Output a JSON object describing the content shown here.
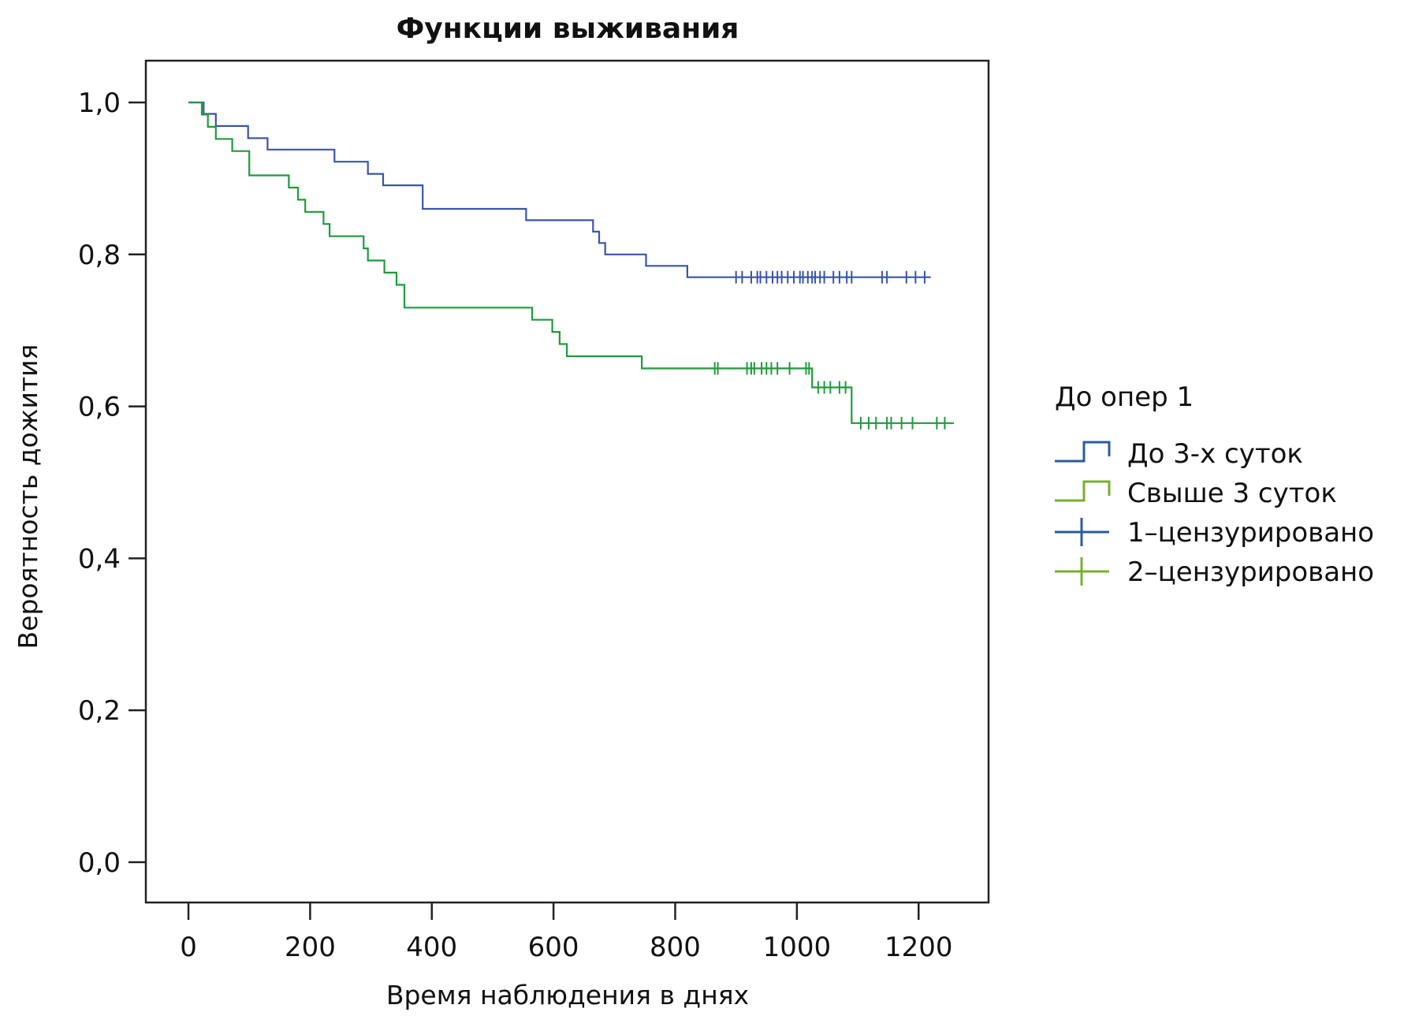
{
  "chart_data": {
    "type": "line",
    "subtype": "kaplan-meier step",
    "title": "Функции выживания",
    "xlabel": "Время наблюдения в днях",
    "ylabel": "Вероятность дожития",
    "xlim": [
      -70,
      1315
    ],
    "ylim": [
      -0.053,
      1.055
    ],
    "x_ticks": [
      0,
      200,
      400,
      600,
      800,
      1000,
      1200
    ],
    "x_tick_labels": [
      "0",
      "200",
      "400",
      "600",
      "800",
      "1000",
      "1200"
    ],
    "y_ticks": [
      0.0,
      0.2,
      0.4,
      0.6,
      0.8,
      1.0
    ],
    "y_tick_labels": [
      "0,0",
      "0,2",
      "0,4",
      "0,6",
      "0,8",
      "1,0"
    ],
    "grid": false,
    "legend": {
      "position": "right",
      "title": "До опер 1",
      "entries": [
        {
          "label": "До 3-х суток",
          "kind": "step",
          "color": "#2b5c9e"
        },
        {
          "label": "Свыше 3 суток",
          "kind": "step",
          "color": "#78b02e"
        },
        {
          "label": "1–цензурировано",
          "kind": "censor",
          "color": "#2b5c9e"
        },
        {
          "label": "2–цензурировано",
          "kind": "censor",
          "color": "#78b02e"
        }
      ]
    },
    "series": [
      {
        "name": "До 3-х суток",
        "color": "#3a55a8",
        "points": [
          [
            0,
            1.0
          ],
          [
            25,
            1.0
          ],
          [
            25,
            0.985
          ],
          [
            45,
            0.985
          ],
          [
            45,
            0.969
          ],
          [
            98,
            0.969
          ],
          [
            98,
            0.953
          ],
          [
            130,
            0.953
          ],
          [
            130,
            0.938
          ],
          [
            240,
            0.938
          ],
          [
            240,
            0.922
          ],
          [
            295,
            0.922
          ],
          [
            295,
            0.906
          ],
          [
            320,
            0.906
          ],
          [
            320,
            0.891
          ],
          [
            385,
            0.891
          ],
          [
            385,
            0.86
          ],
          [
            555,
            0.86
          ],
          [
            555,
            0.845
          ],
          [
            665,
            0.845
          ],
          [
            665,
            0.83
          ],
          [
            675,
            0.83
          ],
          [
            675,
            0.815
          ],
          [
            685,
            0.815
          ],
          [
            685,
            0.8
          ],
          [
            752,
            0.8
          ],
          [
            752,
            0.785
          ],
          [
            820,
            0.785
          ],
          [
            820,
            0.77
          ],
          [
            1220,
            0.77
          ]
        ],
        "censored": [
          [
            900,
            0.77
          ],
          [
            910,
            0.77
          ],
          [
            925,
            0.77
          ],
          [
            935,
            0.77
          ],
          [
            940,
            0.77
          ],
          [
            950,
            0.77
          ],
          [
            960,
            0.77
          ],
          [
            968,
            0.77
          ],
          [
            975,
            0.77
          ],
          [
            985,
            0.77
          ],
          [
            995,
            0.77
          ],
          [
            1005,
            0.77
          ],
          [
            1010,
            0.77
          ],
          [
            1018,
            0.77
          ],
          [
            1025,
            0.77
          ],
          [
            1030,
            0.77
          ],
          [
            1038,
            0.77
          ],
          [
            1045,
            0.77
          ],
          [
            1060,
            0.77
          ],
          [
            1070,
            0.77
          ],
          [
            1082,
            0.77
          ],
          [
            1090,
            0.77
          ],
          [
            1140,
            0.77
          ],
          [
            1148,
            0.77
          ],
          [
            1180,
            0.77
          ],
          [
            1195,
            0.77
          ],
          [
            1210,
            0.77
          ]
        ]
      },
      {
        "name": "Свыше 3 суток",
        "color": "#1f9b3c",
        "points": [
          [
            0,
            1.0
          ],
          [
            22,
            1.0
          ],
          [
            22,
            0.984
          ],
          [
            32,
            0.984
          ],
          [
            32,
            0.968
          ],
          [
            45,
            0.968
          ],
          [
            45,
            0.952
          ],
          [
            72,
            0.952
          ],
          [
            72,
            0.936
          ],
          [
            100,
            0.936
          ],
          [
            100,
            0.904
          ],
          [
            165,
            0.904
          ],
          [
            165,
            0.888
          ],
          [
            180,
            0.888
          ],
          [
            180,
            0.872
          ],
          [
            192,
            0.872
          ],
          [
            192,
            0.856
          ],
          [
            222,
            0.856
          ],
          [
            222,
            0.84
          ],
          [
            232,
            0.84
          ],
          [
            232,
            0.824
          ],
          [
            288,
            0.824
          ],
          [
            288,
            0.808
          ],
          [
            295,
            0.808
          ],
          [
            295,
            0.792
          ],
          [
            322,
            0.792
          ],
          [
            322,
            0.776
          ],
          [
            342,
            0.776
          ],
          [
            342,
            0.76
          ],
          [
            355,
            0.76
          ],
          [
            355,
            0.73
          ],
          [
            565,
            0.73
          ],
          [
            565,
            0.714
          ],
          [
            598,
            0.714
          ],
          [
            598,
            0.698
          ],
          [
            610,
            0.698
          ],
          [
            610,
            0.682
          ],
          [
            622,
            0.682
          ],
          [
            622,
            0.666
          ],
          [
            745,
            0.666
          ],
          [
            745,
            0.65
          ],
          [
            1025,
            0.65
          ],
          [
            1025,
            0.625
          ],
          [
            1090,
            0.625
          ],
          [
            1090,
            0.578
          ],
          [
            1258,
            0.578
          ]
        ],
        "censored": [
          [
            865,
            0.65
          ],
          [
            870,
            0.65
          ],
          [
            918,
            0.65
          ],
          [
            925,
            0.65
          ],
          [
            930,
            0.65
          ],
          [
            942,
            0.65
          ],
          [
            950,
            0.65
          ],
          [
            958,
            0.65
          ],
          [
            968,
            0.65
          ],
          [
            988,
            0.65
          ],
          [
            1015,
            0.65
          ],
          [
            1020,
            0.65
          ],
          [
            1035,
            0.625
          ],
          [
            1045,
            0.625
          ],
          [
            1055,
            0.625
          ],
          [
            1070,
            0.625
          ],
          [
            1080,
            0.625
          ],
          [
            1105,
            0.578
          ],
          [
            1118,
            0.578
          ],
          [
            1130,
            0.578
          ],
          [
            1148,
            0.578
          ],
          [
            1155,
            0.578
          ],
          [
            1172,
            0.578
          ],
          [
            1190,
            0.578
          ],
          [
            1230,
            0.578
          ],
          [
            1243,
            0.578
          ]
        ]
      }
    ]
  }
}
